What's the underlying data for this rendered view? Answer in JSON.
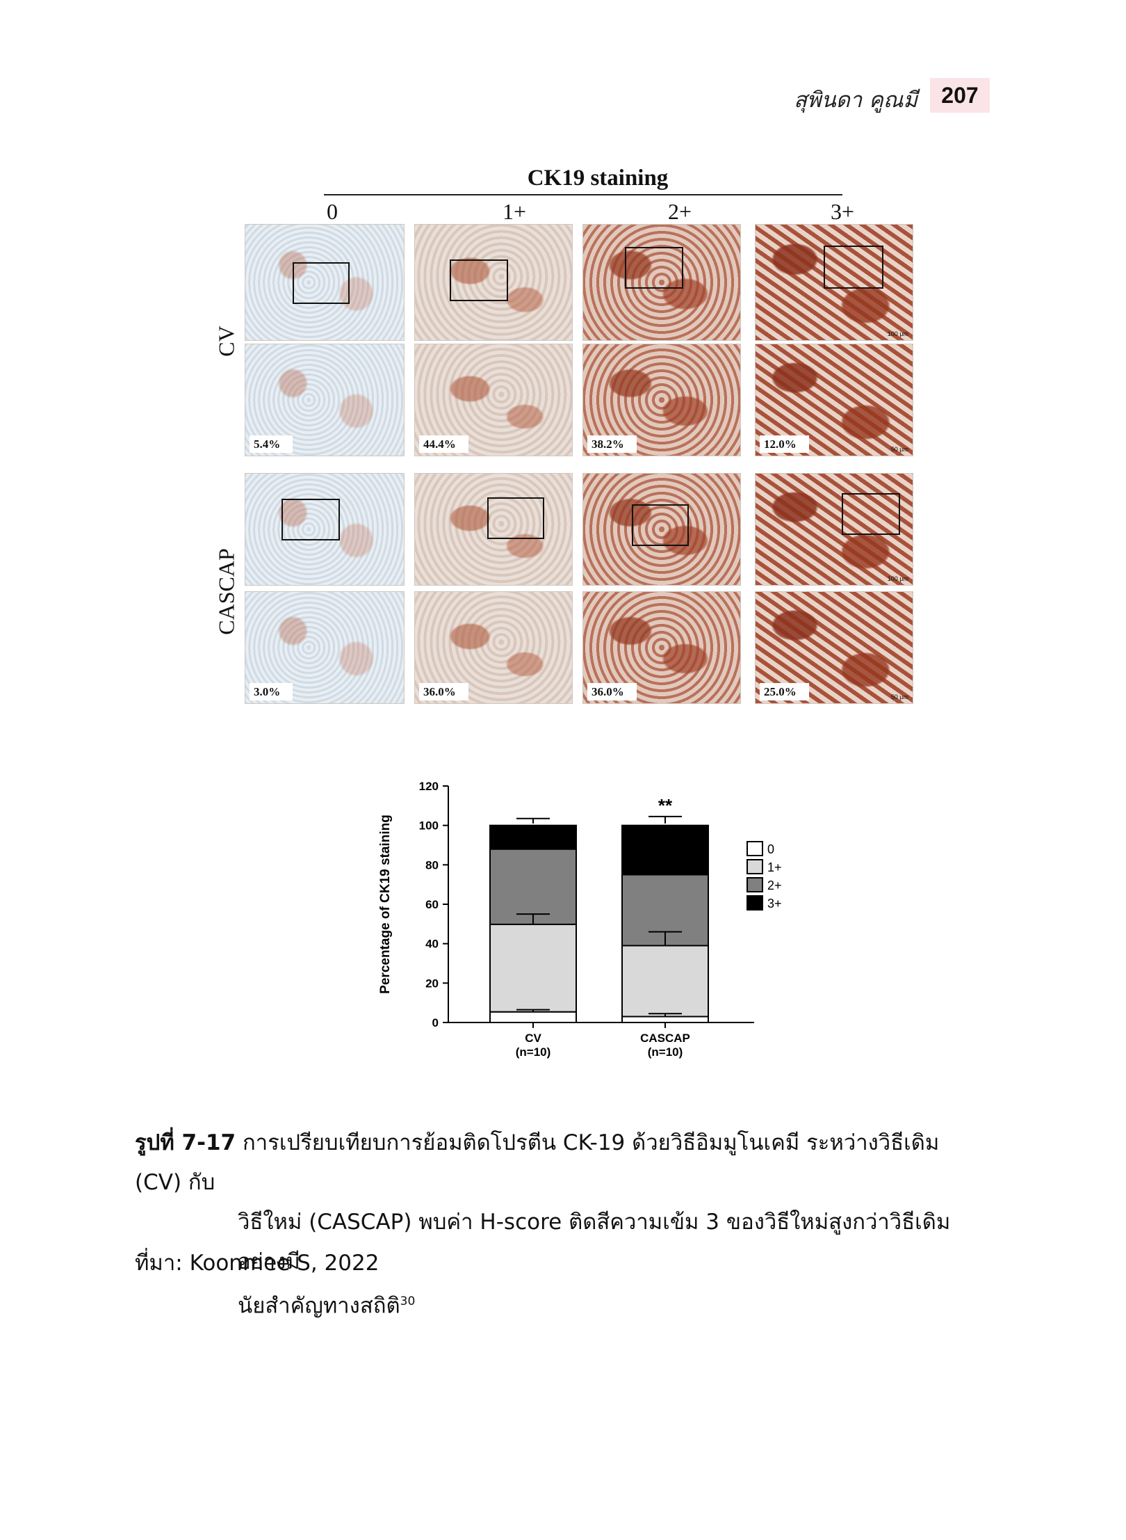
{
  "header": {
    "author": "สุพินดา คูณมี",
    "page_number": "207"
  },
  "figure": {
    "title": "CK19 staining",
    "grades": [
      "0",
      "1+",
      "2+",
      "3+"
    ],
    "rows": [
      {
        "label": "CV",
        "percents": [
          "5.4%",
          "44.4%",
          "38.2%",
          "12.0%"
        ]
      },
      {
        "label": "CASCAP",
        "percents": [
          "3.0%",
          "36.0%",
          "36.0%",
          "25.0%"
        ]
      }
    ],
    "scale_bars": {
      "overview": "100 µm",
      "inset": "50 µm"
    }
  },
  "chart_data": {
    "type": "bar",
    "stacked": true,
    "categories": [
      "CV\n(n=10)",
      "CASCAP\n(n=10)"
    ],
    "series": [
      {
        "name": "0",
        "values": [
          5.4,
          3.0
        ],
        "color": "#ffffff"
      },
      {
        "name": "1+",
        "values": [
          44.4,
          36.0
        ],
        "color": "#d9d9d9"
      },
      {
        "name": "2+",
        "values": [
          38.2,
          36.0
        ],
        "color": "#808080"
      },
      {
        "name": "3+",
        "values": [
          12.0,
          25.0
        ],
        "color": "#000000"
      }
    ],
    "error_bars_top": [
      [
        50,
        55
      ],
      [
        39,
        46
      ],
      [
        101,
        103.5
      ],
      [
        101,
        104.5
      ],
      [
        5.4,
        6.5
      ],
      [
        3.0,
        4.5
      ]
    ],
    "ylabel": "Percentage of CK19 staining",
    "ylim": [
      0,
      120
    ],
    "yticks": [
      0,
      20,
      40,
      60,
      80,
      100,
      120
    ],
    "annotation": "**",
    "legend_position": "right"
  },
  "caption": {
    "lead": "รูปที่ 7-17",
    "line1": "การเปรียบเทียบการย้อมติดโปรตีน CK-19 ด้วยวิธีอิมมูโนเคมี ระหว่างวิธีเดิม (CV) กับ",
    "line2": "วิธีใหม่ (CASCAP) พบค่า H-score ติดสีความเข้ม 3 ของวิธีใหม่สูงกว่าวิธีเดิมอย่างมี",
    "line3": "นัยสำคัญทางสถิติ",
    "ref": "30"
  },
  "source": "ที่มา: Koonmee S, 2022"
}
